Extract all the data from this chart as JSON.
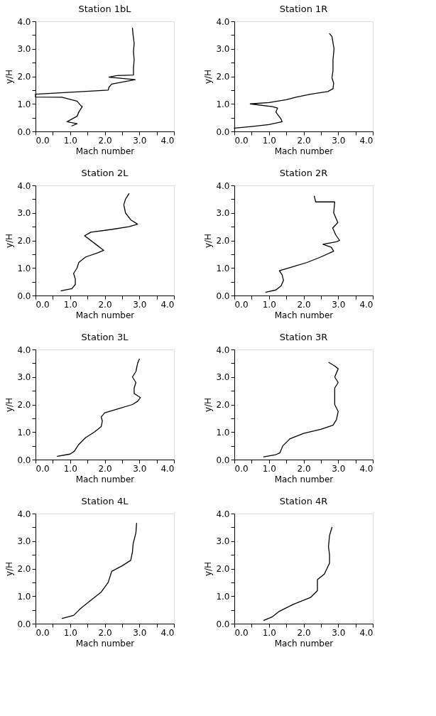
{
  "chart_data": [
    {
      "type": "line",
      "title": "Station 1bL",
      "xlabel": "Mach number",
      "ylabel": "y/H",
      "grid": false,
      "xlim": [
        0,
        4
      ],
      "ylim": [
        0,
        4
      ],
      "xticks": [
        {
          "value": 0,
          "label": "0.0"
        },
        {
          "value": 0.5,
          "label": null
        },
        {
          "value": 1,
          "label": "1.0"
        },
        {
          "value": 1.5,
          "label": null
        },
        {
          "value": 2,
          "label": "2.0"
        },
        {
          "value": 2.5,
          "label": null
        },
        {
          "value": 3,
          "label": "3.0"
        },
        {
          "value": 3.5,
          "label": null
        },
        {
          "value": 4,
          "label": "4.0"
        }
      ],
      "yticks": [
        {
          "value": 0,
          "label": "0.0"
        },
        {
          "value": 0.5,
          "label": null
        },
        {
          "value": 1,
          "label": "1.0"
        },
        {
          "value": 1.5,
          "label": null
        },
        {
          "value": 2,
          "label": "2.0"
        },
        {
          "value": 2.5,
          "label": null
        },
        {
          "value": 3,
          "label": "3.0"
        },
        {
          "value": 3.5,
          "label": null
        },
        {
          "value": 4,
          "label": "4.0"
        }
      ],
      "series": [
        {
          "color": "#000000",
          "x": [
            2.8,
            2.82,
            2.85,
            2.83,
            2.85,
            2.83,
            2.83,
            2.35,
            2.12,
            2.88,
            2.2,
            2.12,
            2.1,
            0.0,
            0.0,
            0.76,
            1.2,
            1.3,
            1.35,
            1.25,
            1.2,
            0.91,
            1.2,
            1.05
          ],
          "values": [
            3.75,
            3.5,
            3.2,
            2.9,
            2.6,
            2.3,
            2.05,
            2.03,
            1.97,
            1.88,
            1.72,
            1.6,
            1.5,
            1.35,
            1.25,
            1.24,
            1.1,
            0.95,
            0.9,
            0.7,
            0.55,
            0.35,
            0.28,
            0.2
          ]
        }
      ]
    },
    {
      "type": "line",
      "title": "Station 1R",
      "xlabel": "Mach number",
      "ylabel": "y/H",
      "grid": false,
      "xlim": [
        0,
        4
      ],
      "ylim": [
        0,
        4
      ],
      "xticks": [
        {
          "value": 0,
          "label": "0.0"
        },
        {
          "value": 0.5,
          "label": null
        },
        {
          "value": 1,
          "label": "1.0"
        },
        {
          "value": 1.5,
          "label": null
        },
        {
          "value": 2,
          "label": "2.0"
        },
        {
          "value": 2.5,
          "label": null
        },
        {
          "value": 3,
          "label": "3.0"
        },
        {
          "value": 3.5,
          "label": null
        },
        {
          "value": 4,
          "label": "4.0"
        }
      ],
      "yticks": [
        {
          "value": 0,
          "label": "0.0"
        },
        {
          "value": 0.5,
          "label": null
        },
        {
          "value": 1,
          "label": "1.0"
        },
        {
          "value": 1.5,
          "label": null
        },
        {
          "value": 2,
          "label": "2.0"
        },
        {
          "value": 2.5,
          "label": null
        },
        {
          "value": 3,
          "label": "3.0"
        },
        {
          "value": 3.5,
          "label": null
        },
        {
          "value": 4,
          "label": "4.0"
        }
      ],
      "series": [
        {
          "color": "#000000",
          "x": [
            2.75,
            2.82,
            2.88,
            2.85,
            2.85,
            2.82,
            2.87,
            2.85,
            2.7,
            2.2,
            1.8,
            1.5,
            1.0,
            0.46,
            1.1,
            1.25,
            1.2,
            1.35,
            1.38,
            1.0,
            0.5,
            0.0
          ],
          "values": [
            3.55,
            3.45,
            3.0,
            2.6,
            2.2,
            1.95,
            1.75,
            1.55,
            1.45,
            1.35,
            1.25,
            1.15,
            1.05,
            1.0,
            0.9,
            0.85,
            0.7,
            0.45,
            0.35,
            0.25,
            0.18,
            0.12
          ]
        }
      ]
    },
    {
      "type": "line",
      "title": "Station 2L",
      "xlabel": "Mach number",
      "ylabel": "y/H",
      "grid": false,
      "xlim": [
        0,
        4
      ],
      "ylim": [
        0,
        4
      ],
      "xticks": [
        {
          "value": 0,
          "label": "0.0"
        },
        {
          "value": 0.5,
          "label": null
        },
        {
          "value": 1,
          "label": "1.0"
        },
        {
          "value": 1.5,
          "label": null
        },
        {
          "value": 2,
          "label": "2.0"
        },
        {
          "value": 2.5,
          "label": null
        },
        {
          "value": 3,
          "label": "3.0"
        },
        {
          "value": 3.5,
          "label": null
        },
        {
          "value": 4,
          "label": "4.0"
        }
      ],
      "yticks": [
        {
          "value": 0,
          "label": "0.0"
        },
        {
          "value": 0.5,
          "label": null
        },
        {
          "value": 1,
          "label": "1.0"
        },
        {
          "value": 1.5,
          "label": null
        },
        {
          "value": 2,
          "label": "2.0"
        },
        {
          "value": 2.5,
          "label": null
        },
        {
          "value": 3,
          "label": "3.0"
        },
        {
          "value": 3.5,
          "label": null
        },
        {
          "value": 4,
          "label": "4.0"
        }
      ],
      "series": [
        {
          "color": "#000000",
          "x": [
            0.74,
            1.05,
            1.15,
            1.15,
            1.1,
            1.2,
            1.25,
            1.45,
            1.8,
            1.97,
            1.7,
            1.42,
            1.6,
            2.2,
            2.7,
            2.95,
            2.75,
            2.6,
            2.55,
            2.6,
            2.7
          ],
          "values": [
            0.17,
            0.25,
            0.4,
            0.6,
            0.8,
            1.0,
            1.2,
            1.4,
            1.55,
            1.64,
            1.9,
            2.17,
            2.3,
            2.4,
            2.5,
            2.59,
            2.75,
            3.0,
            3.3,
            3.5,
            3.7
          ]
        }
      ]
    },
    {
      "type": "line",
      "title": "Station 2R",
      "xlabel": "Mach number",
      "ylabel": "y/H",
      "grid": false,
      "xlim": [
        0,
        4
      ],
      "ylim": [
        0,
        4
      ],
      "xticks": [
        {
          "value": 0,
          "label": "0.0"
        },
        {
          "value": 0.5,
          "label": null
        },
        {
          "value": 1,
          "label": "1.0"
        },
        {
          "value": 1.5,
          "label": null
        },
        {
          "value": 2,
          "label": "2.0"
        },
        {
          "value": 2.5,
          "label": null
        },
        {
          "value": 3,
          "label": "3.0"
        },
        {
          "value": 3.5,
          "label": null
        },
        {
          "value": 4,
          "label": "4.0"
        }
      ],
      "yticks": [
        {
          "value": 0,
          "label": "0.0"
        },
        {
          "value": 0.5,
          "label": null
        },
        {
          "value": 1,
          "label": "1.0"
        },
        {
          "value": 1.5,
          "label": null
        },
        {
          "value": 2,
          "label": "2.0"
        },
        {
          "value": 2.5,
          "label": null
        },
        {
          "value": 3,
          "label": "3.0"
        },
        {
          "value": 3.5,
          "label": null
        },
        {
          "value": 4,
          "label": "4.0"
        }
      ],
      "series": [
        {
          "color": "#000000",
          "x": [
            0.91,
            1.2,
            1.35,
            1.42,
            1.38,
            1.3,
            1.7,
            2.1,
            2.5,
            2.87,
            2.8,
            2.56,
            2.95,
            3.04,
            2.93,
            2.84,
            2.99,
            2.87,
            2.9,
            2.35,
            2.32,
            2.31
          ],
          "values": [
            0.12,
            0.2,
            0.35,
            0.55,
            0.75,
            0.9,
            1.05,
            1.2,
            1.4,
            1.61,
            1.75,
            1.86,
            1.95,
            2.0,
            2.2,
            2.45,
            2.65,
            3.0,
            3.4,
            3.4,
            3.55,
            3.61
          ]
        }
      ]
    },
    {
      "type": "line",
      "title": "Station 3L",
      "xlabel": "Mach number",
      "ylabel": "y/H",
      "grid": false,
      "xlim": [
        0,
        4
      ],
      "ylim": [
        0,
        4
      ],
      "xticks": [
        {
          "value": 0,
          "label": "0.0"
        },
        {
          "value": 0.5,
          "label": null
        },
        {
          "value": 1,
          "label": "1.0"
        },
        {
          "value": 1.5,
          "label": null
        },
        {
          "value": 2,
          "label": "2.0"
        },
        {
          "value": 2.5,
          "label": null
        },
        {
          "value": 3,
          "label": "3.0"
        },
        {
          "value": 3.5,
          "label": null
        },
        {
          "value": 4,
          "label": "4.0"
        }
      ],
      "yticks": [
        {
          "value": 0,
          "label": "0.0"
        },
        {
          "value": 0.5,
          "label": null
        },
        {
          "value": 1,
          "label": "1.0"
        },
        {
          "value": 1.5,
          "label": null
        },
        {
          "value": 2,
          "label": "2.0"
        },
        {
          "value": 2.5,
          "label": null
        },
        {
          "value": 3,
          "label": "3.0"
        },
        {
          "value": 3.5,
          "label": null
        },
        {
          "value": 4,
          "label": "4.0"
        }
      ],
      "series": [
        {
          "color": "#000000",
          "x": [
            0.63,
            1.0,
            1.12,
            1.25,
            1.45,
            1.7,
            1.9,
            1.93,
            1.9,
            2.0,
            2.4,
            2.8,
            2.95,
            3.03,
            2.85,
            2.85,
            2.9,
            2.8,
            2.9,
            2.95,
            3.0
          ],
          "values": [
            0.12,
            0.2,
            0.3,
            0.55,
            0.8,
            1.0,
            1.2,
            1.4,
            1.55,
            1.7,
            1.85,
            2.0,
            2.12,
            2.25,
            2.4,
            2.6,
            2.8,
            3.0,
            3.2,
            3.5,
            3.65
          ]
        }
      ]
    },
    {
      "type": "line",
      "title": "Station 3R",
      "xlabel": "Mach number",
      "ylabel": "y/H",
      "grid": false,
      "xlim": [
        0,
        4
      ],
      "ylim": [
        0,
        4
      ],
      "xticks": [
        {
          "value": 0,
          "label": "0.0"
        },
        {
          "value": 0.5,
          "label": null
        },
        {
          "value": 1,
          "label": "1.0"
        },
        {
          "value": 1.5,
          "label": null
        },
        {
          "value": 2,
          "label": "2.0"
        },
        {
          "value": 2.5,
          "label": null
        },
        {
          "value": 3,
          "label": "3.0"
        },
        {
          "value": 3.5,
          "label": null
        },
        {
          "value": 4,
          "label": "4.0"
        }
      ],
      "yticks": [
        {
          "value": 0,
          "label": "0.0"
        },
        {
          "value": 0.5,
          "label": null
        },
        {
          "value": 1,
          "label": "1.0"
        },
        {
          "value": 1.5,
          "label": null
        },
        {
          "value": 2,
          "label": "2.0"
        },
        {
          "value": 2.5,
          "label": null
        },
        {
          "value": 3,
          "label": "3.0"
        },
        {
          "value": 3.5,
          "label": null
        },
        {
          "value": 4,
          "label": "4.0"
        }
      ],
      "series": [
        {
          "color": "#000000",
          "x": [
            0.85,
            1.2,
            1.32,
            1.4,
            1.6,
            2.0,
            2.5,
            2.85,
            2.95,
            3.0,
            2.9,
            2.9,
            2.9,
            3.0,
            2.9,
            3.0,
            2.9,
            2.73
          ],
          "values": [
            0.1,
            0.18,
            0.25,
            0.5,
            0.75,
            0.95,
            1.1,
            1.25,
            1.45,
            1.75,
            2.0,
            2.4,
            2.6,
            2.8,
            3.0,
            3.3,
            3.4,
            3.53
          ]
        }
      ]
    },
    {
      "type": "line",
      "title": "Station 4L",
      "xlabel": "Mach number",
      "ylabel": "y/H",
      "grid": false,
      "xlim": [
        0,
        4
      ],
      "ylim": [
        0,
        4
      ],
      "xticks": [
        {
          "value": 0,
          "label": "0.0"
        },
        {
          "value": 0.5,
          "label": null
        },
        {
          "value": 1,
          "label": "1.0"
        },
        {
          "value": 1.5,
          "label": null
        },
        {
          "value": 2,
          "label": "2.0"
        },
        {
          "value": 2.5,
          "label": null
        },
        {
          "value": 3,
          "label": "3.0"
        },
        {
          "value": 3.5,
          "label": null
        },
        {
          "value": 4,
          "label": "4.0"
        }
      ],
      "yticks": [
        {
          "value": 0,
          "label": "0.0"
        },
        {
          "value": 0.5,
          "label": null
        },
        {
          "value": 1,
          "label": "1.0"
        },
        {
          "value": 1.5,
          "label": null
        },
        {
          "value": 2,
          "label": "2.0"
        },
        {
          "value": 2.5,
          "label": null
        },
        {
          "value": 3,
          "label": "3.0"
        },
        {
          "value": 3.5,
          "label": null
        },
        {
          "value": 4,
          "label": "4.0"
        }
      ],
      "series": [
        {
          "color": "#000000",
          "x": [
            0.77,
            1.1,
            1.3,
            1.6,
            1.9,
            2.1,
            2.2,
            2.5,
            2.75,
            2.8,
            2.82,
            2.9,
            2.92
          ],
          "values": [
            0.19,
            0.3,
            0.55,
            0.85,
            1.15,
            1.5,
            1.9,
            2.1,
            2.3,
            2.6,
            2.9,
            3.3,
            3.65
          ]
        }
      ]
    },
    {
      "type": "line",
      "title": "Station 4R",
      "xlabel": "Mach number",
      "ylabel": "y/H",
      "grid": false,
      "xlim": [
        0,
        4
      ],
      "ylim": [
        0,
        4
      ],
      "xticks": [
        {
          "value": 0,
          "label": "0.0"
        },
        {
          "value": 0.5,
          "label": null
        },
        {
          "value": 1,
          "label": "1.0"
        },
        {
          "value": 1.5,
          "label": null
        },
        {
          "value": 2,
          "label": "2.0"
        },
        {
          "value": 2.5,
          "label": null
        },
        {
          "value": 3,
          "label": "3.0"
        },
        {
          "value": 3.5,
          "label": null
        },
        {
          "value": 4,
          "label": "4.0"
        }
      ],
      "yticks": [
        {
          "value": 0,
          "label": "0.0"
        },
        {
          "value": 0.5,
          "label": null
        },
        {
          "value": 1,
          "label": "1.0"
        },
        {
          "value": 1.5,
          "label": null
        },
        {
          "value": 2,
          "label": "2.0"
        },
        {
          "value": 2.5,
          "label": null
        },
        {
          "value": 3,
          "label": "3.0"
        },
        {
          "value": 3.5,
          "label": null
        },
        {
          "value": 4,
          "label": "4.0"
        }
      ],
      "series": [
        {
          "color": "#000000",
          "x": [
            0.85,
            1.1,
            1.3,
            1.7,
            2.2,
            2.4,
            2.4,
            2.6,
            2.75,
            2.75,
            2.72,
            2.75,
            2.82
          ],
          "values": [
            0.12,
            0.25,
            0.45,
            0.7,
            0.95,
            1.2,
            1.6,
            1.8,
            2.2,
            2.5,
            2.8,
            3.2,
            3.5
          ]
        }
      ]
    }
  ]
}
